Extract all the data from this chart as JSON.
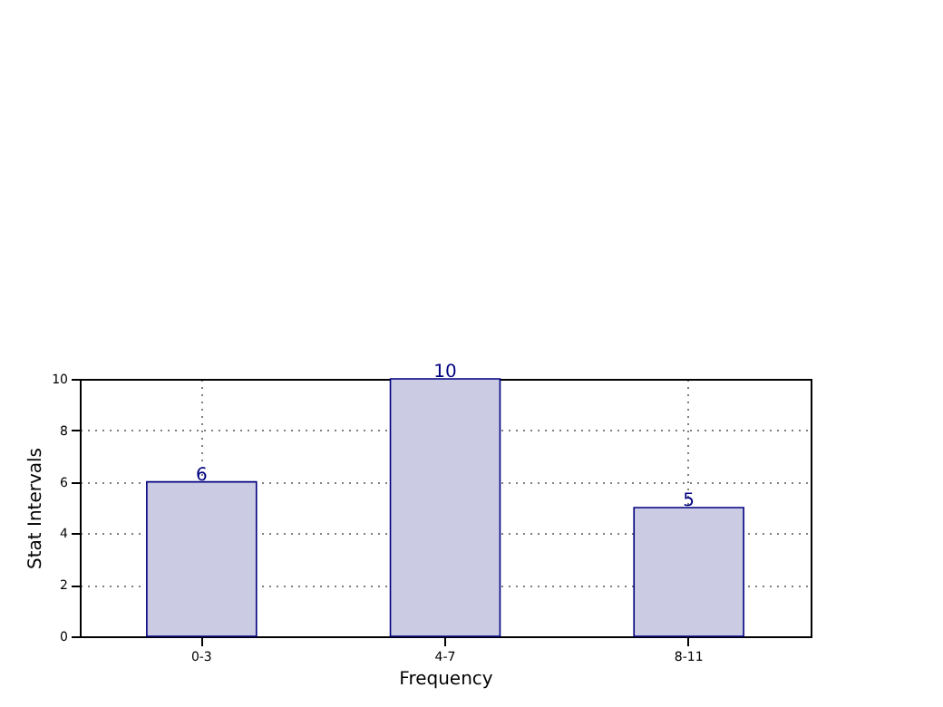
{
  "chart_data": {
    "type": "bar",
    "xlabel": "Frequency",
    "ylabel": "Stat Intervals",
    "categories": [
      "0-3",
      "4-7",
      "8-11"
    ],
    "series": [
      {
        "color": "#cbcbe3",
        "values": [
          6,
          10,
          5
        ]
      }
    ],
    "ylim": [
      0,
      10
    ],
    "yticks": [
      0,
      2,
      4,
      6,
      8,
      10
    ],
    "grid": true,
    "data_labels": true
  }
}
